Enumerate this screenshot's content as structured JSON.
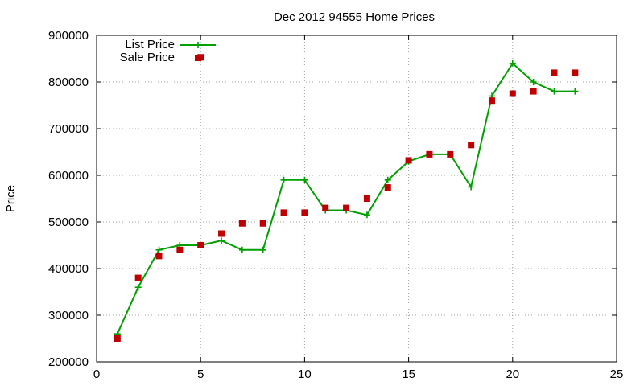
{
  "chart_data": {
    "type": "line",
    "title": "Dec 2012 94555 Home Prices",
    "ylabel": "Price",
    "xlabel": "",
    "xlim": [
      0,
      25
    ],
    "ylim": [
      200000,
      900000
    ],
    "xticks": [
      "0",
      "5",
      "10",
      "15",
      "20",
      "25"
    ],
    "yticks": [
      "200000",
      "300000",
      "400000",
      "500000",
      "600000",
      "700000",
      "800000",
      "900000"
    ],
    "grid": true,
    "legend_position": "top-left",
    "series": [
      {
        "name": "List Price",
        "style": "line-with-plus-markers",
        "color": "#00a000",
        "points": [
          [
            1,
            260000
          ],
          [
            2,
            360000
          ],
          [
            3,
            440000
          ],
          [
            4,
            450000
          ],
          [
            5,
            450000
          ],
          [
            6,
            460000
          ],
          [
            7,
            440000
          ],
          [
            8,
            440000
          ],
          [
            9,
            590000
          ],
          [
            10,
            590000
          ],
          [
            11,
            525000
          ],
          [
            12,
            525000
          ],
          [
            13,
            515000
          ],
          [
            14,
            590000
          ],
          [
            15,
            630000
          ],
          [
            16,
            645000
          ],
          [
            17,
            645000
          ],
          [
            18,
            575000
          ],
          [
            19,
            770000
          ],
          [
            20,
            840000
          ],
          [
            21,
            800000
          ],
          [
            22,
            780000
          ],
          [
            23,
            780000
          ]
        ]
      },
      {
        "name": "Sale Price",
        "style": "square-markers",
        "color": "#c00000",
        "points": [
          [
            1,
            250000
          ],
          [
            2,
            380000
          ],
          [
            3,
            427000
          ],
          [
            4,
            440000
          ],
          [
            5,
            450000
          ],
          [
            6,
            475000
          ],
          [
            7,
            497000
          ],
          [
            8,
            497000
          ],
          [
            9,
            520000
          ],
          [
            10,
            520000
          ],
          [
            11,
            530000
          ],
          [
            12,
            530000
          ],
          [
            13,
            550000
          ],
          [
            14,
            574000
          ],
          [
            15,
            632000
          ],
          [
            16,
            645000
          ],
          [
            17,
            645000
          ],
          [
            18,
            665000
          ],
          [
            19,
            760000
          ],
          [
            20,
            775000
          ],
          [
            21,
            780000
          ],
          [
            22,
            820000
          ],
          [
            23,
            820000
          ],
          [
            5,
            853000
          ]
        ]
      }
    ]
  }
}
